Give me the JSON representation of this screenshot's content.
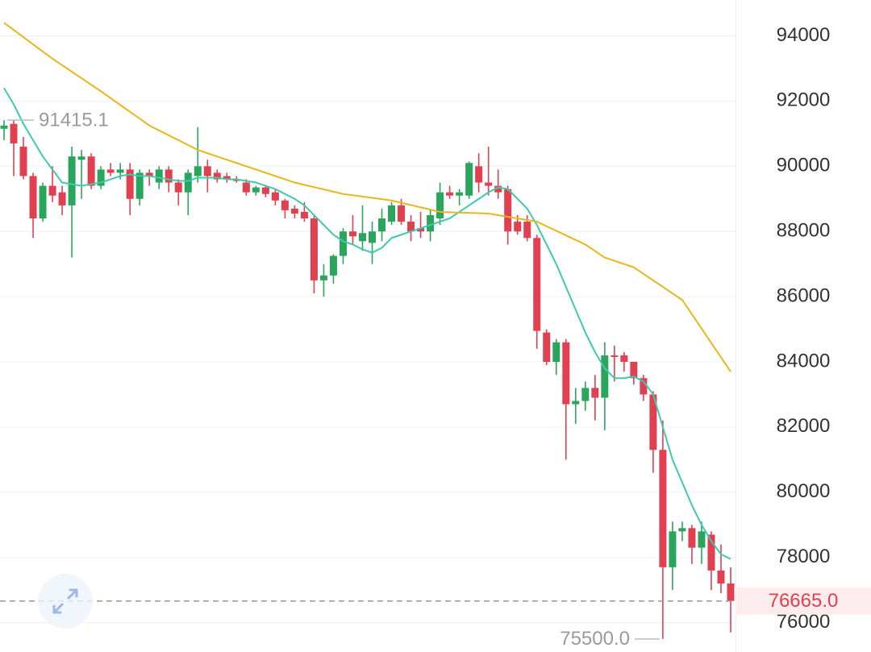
{
  "chart_data": {
    "type": "candlestick",
    "up_color": "#2aa65c",
    "down_color": "#e0404f",
    "ylim": [
      75100,
      95100
    ],
    "yticks": [
      76000,
      78000,
      80000,
      82000,
      84000,
      86000,
      88000,
      90000,
      92000,
      94000
    ],
    "grid": true,
    "open": [
      91150,
      91300,
      90600,
      89700,
      88400,
      89400,
      89200,
      88800,
      90200,
      90300,
      89400,
      89900,
      89800,
      89900,
      89000,
      89800,
      89500,
      89900,
      89500,
      89200,
      89700,
      90000,
      89800,
      89700,
      89600,
      89500,
      89200,
      89350,
      89200,
      88950,
      88700,
      88600,
      88400,
      86500,
      86650,
      87250,
      88000,
      87700,
      87650,
      88000,
      88300,
      88800,
      88300,
      88100,
      88000,
      88400,
      89200,
      89100,
      89100,
      90000,
      89500,
      89400,
      89300,
      88300,
      88300,
      87800,
      84900,
      84000,
      84600,
      82700,
      82800,
      83200,
      82900,
      84200,
      84200,
      84000,
      83500,
      83000,
      81300,
      77700,
      78800,
      78900,
      78300,
      78700,
      77600,
      77200
    ],
    "high": [
      91415.1,
      91400,
      90900,
      89800,
      89500,
      90000,
      89400,
      90600,
      90500,
      90400,
      90000,
      90100,
      90100,
      90100,
      89900,
      89900,
      90000,
      90000,
      89600,
      89900,
      91200,
      90200,
      89900,
      89800,
      89700,
      89600,
      89400,
      89400,
      89300,
      89000,
      88800,
      88900,
      88500,
      87000,
      87300,
      88100,
      88500,
      88800,
      88300,
      88700,
      88900,
      89000,
      88500,
      88600,
      88700,
      89500,
      89400,
      89300,
      90150,
      90400,
      90600,
      89900,
      89400,
      88500,
      88500,
      87900,
      85000,
      84700,
      84700,
      83200,
      83400,
      83600,
      84600,
      84500,
      84300,
      84000,
      83600,
      83100,
      82200,
      79100,
      79100,
      79000,
      79100,
      78800,
      78400,
      77700
    ],
    "low": [
      90800,
      89700,
      89600,
      87800,
      88300,
      88900,
      88500,
      87200,
      89000,
      89300,
      89300,
      89700,
      89600,
      88500,
      88800,
      89400,
      89300,
      89200,
      88800,
      88500,
      89500,
      89200,
      89500,
      89500,
      89500,
      89100,
      89100,
      89050,
      88800,
      88400,
      88400,
      88300,
      86100,
      86000,
      86400,
      87000,
      87600,
      87400,
      87000,
      87700,
      88200,
      88200,
      87700,
      87800,
      87700,
      88200,
      89000,
      88800,
      89000,
      89200,
      89100,
      89000,
      87600,
      87900,
      87700,
      84400,
      83900,
      83600,
      81000,
      82100,
      82500,
      82200,
      81900,
      83400,
      83700,
      83300,
      82800,
      80600,
      75500,
      77000,
      78500,
      77800,
      77800,
      77000,
      76900,
      75700
    ],
    "close": [
      91250,
      90700,
      89700,
      88400,
      89400,
      89100,
      88800,
      90300,
      90300,
      89400,
      89900,
      89800,
      89900,
      89000,
      89800,
      89700,
      89900,
      89500,
      89200,
      89800,
      90000,
      89700,
      89600,
      89600,
      89550,
      89200,
      89350,
      89150,
      88950,
      88650,
      88550,
      88400,
      86500,
      86650,
      87250,
      88000,
      87850,
      87950,
      88000,
      88400,
      88800,
      88300,
      88000,
      88000,
      88500,
      89200,
      89100,
      89200,
      90100,
      89500,
      89400,
      89200,
      88000,
      88000,
      87800,
      84950,
      84000,
      84600,
      82700,
      82800,
      83200,
      82900,
      84200,
      84150,
      84000,
      83500,
      83000,
      81300,
      77700,
      78800,
      78900,
      78300,
      78800,
      77600,
      77200,
      76665
    ],
    "moving_averages": [
      {
        "color": "#3fc9ad",
        "values": [
          92400,
          91900,
          91300,
          90800,
          90300,
          89900,
          89500,
          89450,
          89400,
          89450,
          89500,
          89600,
          89700,
          89750,
          89700,
          89700,
          89650,
          89600,
          89550,
          89550,
          89650,
          89650,
          89650,
          89600,
          89600,
          89550,
          89500,
          89400,
          89300,
          89150,
          89000,
          88800,
          88500,
          88200,
          87900,
          87700,
          87600,
          87450,
          87350,
          87500,
          87800,
          87900,
          88000,
          88100,
          88200,
          88300,
          88400,
          88600,
          88800,
          89000,
          89200,
          89350,
          89300,
          89000,
          88700,
          88200,
          87600,
          87000,
          86300,
          85600,
          84900,
          84300,
          83800,
          83500,
          83500,
          83550,
          83400,
          83000,
          82000,
          81000,
          80300,
          79600,
          79000,
          78500,
          78100,
          77950
        ]
      },
      {
        "color": "#e9b71c",
        "values": [
          94400,
          94180,
          93960,
          93740,
          93520,
          93300,
          93100,
          92900,
          92700,
          92500,
          92300,
          92090,
          91880,
          91670,
          91460,
          91250,
          91100,
          90950,
          90800,
          90650,
          90500,
          90400,
          90300,
          90200,
          90100,
          90000,
          89900,
          89800,
          89700,
          89600,
          89500,
          89430,
          89360,
          89290,
          89220,
          89150,
          89110,
          89070,
          89030,
          88990,
          88950,
          88880,
          88810,
          88740,
          88670,
          88600,
          88590,
          88580,
          88570,
          88560,
          88550,
          88500,
          88450,
          88400,
          88350,
          88300,
          88160,
          88020,
          87880,
          87740,
          87600,
          87400,
          87200,
          87100,
          87000,
          86900,
          86700,
          86500,
          86300,
          86100,
          85900,
          85460,
          85020,
          84580,
          84140,
          83700
        ]
      }
    ],
    "high_marker": 91415.1,
    "low_marker": {
      "value": 75500,
      "label": "75500.0"
    },
    "last_price": {
      "value": 76665,
      "label": "76665.0"
    }
  }
}
